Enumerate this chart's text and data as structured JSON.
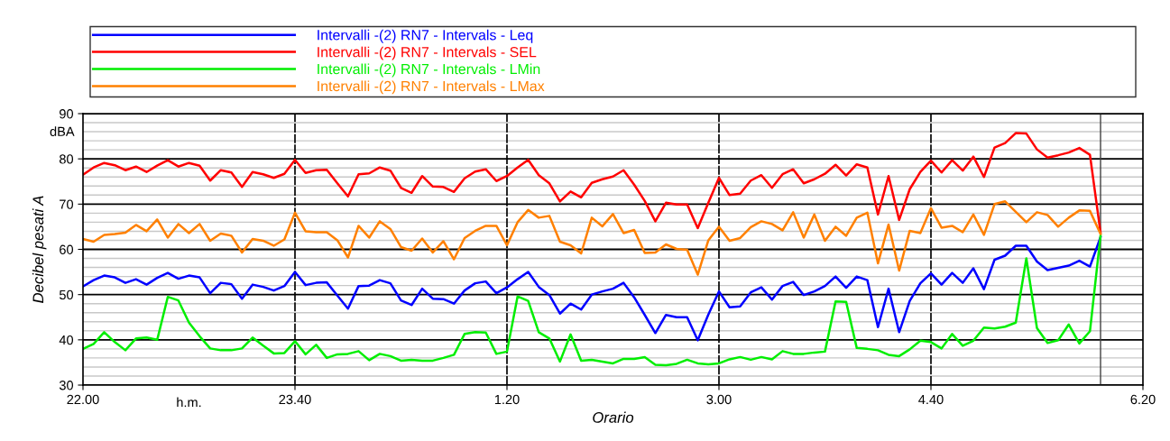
{
  "chart_data": {
    "type": "line",
    "xlabel": "Orario",
    "ylabel": "Decibel pesati A",
    "annotations": [
      "dBA",
      "h.m."
    ],
    "categories": [
      "22.00",
      null,
      null,
      null,
      null,
      null,
      null,
      null,
      null,
      null,
      null,
      null,
      null,
      null,
      null,
      null,
      null,
      null,
      null,
      null,
      "23.40",
      null,
      null,
      null,
      null,
      null,
      null,
      null,
      null,
      null,
      null,
      null,
      null,
      null,
      null,
      null,
      null,
      null,
      null,
      null,
      "1.20",
      null,
      null,
      null,
      null,
      null,
      null,
      null,
      null,
      null,
      null,
      null,
      null,
      null,
      null,
      null,
      null,
      null,
      null,
      null,
      "3.00",
      null,
      null,
      null,
      null,
      null,
      null,
      null,
      null,
      null,
      null,
      null,
      null,
      null,
      null,
      null,
      null,
      null,
      null,
      null,
      "4.40",
      null,
      null,
      null,
      null,
      null,
      null,
      null,
      null,
      null,
      null,
      null,
      null,
      null,
      null,
      null,
      null,
      null,
      null,
      null,
      "6.20"
    ],
    "series": [
      {
        "name": "Intervalli -(2) RN7 - Intervals - Leq",
        "color": "#0000ff",
        "values": [
          51.8,
          53.2,
          54.2,
          53.8,
          52.6,
          53.4,
          52.2,
          53.7,
          54.8,
          53.5,
          54.2,
          53.8,
          50.3,
          52.6,
          52.3,
          49.1,
          52.2,
          51.7,
          50.9,
          51.9,
          55.0,
          52.1,
          52.6,
          52.7,
          49.8,
          46.9,
          51.9,
          52.0,
          53.2,
          52.5,
          48.7,
          47.7,
          51.3,
          49.1,
          49.0,
          48.0,
          50.9,
          52.5,
          52.9,
          50.3,
          51.6,
          53.4,
          55.0,
          51.7,
          49.9,
          45.8,
          48.0,
          46.7,
          50.0,
          50.7,
          51.3,
          52.6,
          49.4,
          45.5,
          41.5,
          45.5,
          45.0,
          45.0,
          39.9,
          45.6,
          50.7,
          47.2,
          47.4,
          50.5,
          51.6,
          48.9,
          51.9,
          52.8,
          49.9,
          50.7,
          51.9,
          54.0,
          51.5,
          54.0,
          53.2,
          42.8,
          51.3,
          41.7,
          48.6,
          52.5,
          54.7,
          52.2,
          54.8,
          52.6,
          55.8,
          51.2,
          57.7,
          58.6,
          60.8,
          60.8,
          57.3,
          55.4,
          55.9,
          56.4,
          57.5,
          56.2,
          62.7,
          null,
          null,
          null,
          null
        ]
      },
      {
        "name": "Intervalli -(2) RN7 - Intervals - SEL",
        "color": "#ff0000",
        "values": [
          76.5,
          78.1,
          79.1,
          78.6,
          77.5,
          78.3,
          77.1,
          78.5,
          79.7,
          78.3,
          79.1,
          78.5,
          75.2,
          77.5,
          77.0,
          73.8,
          77.1,
          76.6,
          75.8,
          76.7,
          79.8,
          76.9,
          77.5,
          77.6,
          74.6,
          71.7,
          76.6,
          76.8,
          78.1,
          77.4,
          73.6,
          72.5,
          76.2,
          73.9,
          73.8,
          72.7,
          75.7,
          77.2,
          77.7,
          75.1,
          76.2,
          78.1,
          79.8,
          76.4,
          74.6,
          70.6,
          72.8,
          71.5,
          74.7,
          75.5,
          76.1,
          77.5,
          74.3,
          70.7,
          66.2,
          70.3,
          69.9,
          69.9,
          64.7,
          70.3,
          75.8,
          72.0,
          72.3,
          75.2,
          76.4,
          73.6,
          76.6,
          77.7,
          74.6,
          75.5,
          76.7,
          78.7,
          76.3,
          78.8,
          78.1,
          67.7,
          76.2,
          66.5,
          73.3,
          77.1,
          79.6,
          77.0,
          79.7,
          77.4,
          80.5,
          76.0,
          82.5,
          83.5,
          85.7,
          85.6,
          82.1,
          80.3,
          80.8,
          81.4,
          82.4,
          80.9,
          63.7,
          null,
          null,
          null,
          null
        ]
      },
      {
        "name": "Intervalli -(2) RN7 - Intervals - LMin",
        "color": "#00ee00",
        "values": [
          38.0,
          39.1,
          41.7,
          39.5,
          37.7,
          40.3,
          40.5,
          40.0,
          49.5,
          48.7,
          43.8,
          40.8,
          38.1,
          37.7,
          37.7,
          38.1,
          40.5,
          38.7,
          37.0,
          37.1,
          39.7,
          36.8,
          38.9,
          36.0,
          36.8,
          36.9,
          37.5,
          35.5,
          36.9,
          36.4,
          35.4,
          35.6,
          35.4,
          35.4,
          36.0,
          36.7,
          41.3,
          41.7,
          41.6,
          36.9,
          37.4,
          49.6,
          48.6,
          41.7,
          40.3,
          35.2,
          41.2,
          35.4,
          35.6,
          35.2,
          34.8,
          35.8,
          35.8,
          36.2,
          34.5,
          34.4,
          34.7,
          35.6,
          34.8,
          34.6,
          34.8,
          35.7,
          36.2,
          35.6,
          36.2,
          35.7,
          37.5,
          36.9,
          36.9,
          37.2,
          37.4,
          48.5,
          48.4,
          38.2,
          38.0,
          37.7,
          36.7,
          36.4,
          37.9,
          39.8,
          39.5,
          38.1,
          41.3,
          38.7,
          39.8,
          42.7,
          42.5,
          42.9,
          43.8,
          58.0,
          42.6,
          39.3,
          39.9,
          43.4,
          39.2,
          41.9,
          63.0,
          null,
          null,
          null,
          null
        ]
      },
      {
        "name": "Intervalli -(2) RN7 - Intervals - LMax",
        "color": "#ff8000",
        "values": [
          62.3,
          61.7,
          63.2,
          63.4,
          63.7,
          65.4,
          64.0,
          66.6,
          62.6,
          65.6,
          63.6,
          65.6,
          61.9,
          63.5,
          63.0,
          59.3,
          62.3,
          61.9,
          60.8,
          62.2,
          68.1,
          64.0,
          63.8,
          63.8,
          62.0,
          58.2,
          65.2,
          62.6,
          66.2,
          64.5,
          60.5,
          59.7,
          62.4,
          59.3,
          61.8,
          57.8,
          62.5,
          64.1,
          65.2,
          65.2,
          60.9,
          66.0,
          68.7,
          67.0,
          67.4,
          61.7,
          60.9,
          59.1,
          67.0,
          65.1,
          67.8,
          63.6,
          64.3,
          59.2,
          59.3,
          61.1,
          60.1,
          59.9,
          54.4,
          62.0,
          65.0,
          61.9,
          62.5,
          64.9,
          66.2,
          65.6,
          64.2,
          68.2,
          62.6,
          67.7,
          61.9,
          65.0,
          63.0,
          67.0,
          68.1,
          56.9,
          65.5,
          55.3,
          64.1,
          63.6,
          69.1,
          64.8,
          65.2,
          63.8,
          67.7,
          63.2,
          70.0,
          70.6,
          68.3,
          66.0,
          68.2,
          67.6,
          65.0,
          67.0,
          68.6,
          68.5,
          63.4,
          null,
          null,
          null,
          null
        ]
      }
    ],
    "ylim": [
      30,
      90
    ],
    "yticks": [
      30,
      {
        "value": 32,
        "label": null
      },
      {
        "value": 34,
        "label": null
      },
      {
        "value": 36,
        "label": null
      },
      {
        "value": 38,
        "label": null
      },
      40,
      {
        "value": 42,
        "label": null
      },
      {
        "value": 44,
        "label": null
      },
      {
        "value": 46,
        "label": null
      },
      {
        "value": 48,
        "label": null
      },
      50,
      {
        "value": 52,
        "label": null
      },
      {
        "value": 54,
        "label": null
      },
      {
        "value": 56,
        "label": null
      },
      {
        "value": 58,
        "label": null
      },
      60,
      {
        "value": 62,
        "label": null
      },
      {
        "value": 64,
        "label": null
      },
      {
        "value": 66,
        "label": null
      },
      {
        "value": 68,
        "label": null
      },
      70,
      {
        "value": 72,
        "label": null
      },
      {
        "value": 74,
        "label": null
      },
      {
        "value": 76,
        "label": null
      },
      {
        "value": 78,
        "label": null
      },
      80,
      {
        "value": 82,
        "label": null
      },
      {
        "value": 84,
        "label": null
      },
      {
        "value": 86,
        "label": null
      },
      {
        "value": 88,
        "label": null
      },
      90
    ],
    "grid": true,
    "legend": "top",
    "marker": "none",
    "line_style": "solid"
  }
}
